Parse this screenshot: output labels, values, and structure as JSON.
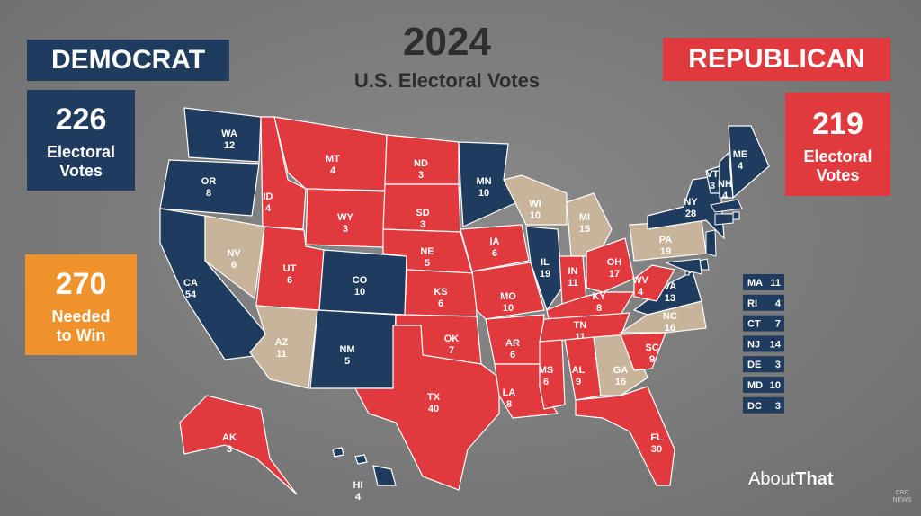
{
  "header": {
    "title": "2024",
    "subtitle": "U.S. Electoral Votes"
  },
  "democrat": {
    "label": "DEMOCRAT",
    "votes": 226,
    "caption": "Electoral Votes",
    "color": "#1f3c5f"
  },
  "republican": {
    "label": "REPUBLICAN",
    "votes": 219,
    "caption": "Electoral Votes",
    "color": "#e0393e"
  },
  "threshold": {
    "votes": 270,
    "caption": "Needed to Win",
    "color": "#f0922b"
  },
  "states": [
    {
      "abbr": "WA",
      "votes": 12,
      "color": "#1f3c5f"
    },
    {
      "abbr": "OR",
      "votes": 8,
      "color": "#1f3c5f"
    },
    {
      "abbr": "CA",
      "votes": 54,
      "color": "#1f3c5f"
    },
    {
      "abbr": "NV",
      "votes": 6,
      "color": "#c8b49b"
    },
    {
      "abbr": "ID",
      "votes": 4,
      "color": "#e0393e"
    },
    {
      "abbr": "MT",
      "votes": 4,
      "color": "#e0393e"
    },
    {
      "abbr": "WY",
      "votes": 3,
      "color": "#e0393e"
    },
    {
      "abbr": "UT",
      "votes": 6,
      "color": "#e0393e"
    },
    {
      "abbr": "AZ",
      "votes": 11,
      "color": "#c8b49b"
    },
    {
      "abbr": "CO",
      "votes": 10,
      "color": "#1f3c5f"
    },
    {
      "abbr": "NM",
      "votes": 5,
      "color": "#1f3c5f"
    },
    {
      "abbr": "ND",
      "votes": 3,
      "color": "#e0393e"
    },
    {
      "abbr": "SD",
      "votes": 3,
      "color": "#e0393e"
    },
    {
      "abbr": "NE",
      "votes": 5,
      "color": "#e0393e"
    },
    {
      "abbr": "KS",
      "votes": 6,
      "color": "#e0393e"
    },
    {
      "abbr": "OK",
      "votes": 7,
      "color": "#e0393e"
    },
    {
      "abbr": "TX",
      "votes": 40,
      "color": "#e0393e"
    },
    {
      "abbr": "MN",
      "votes": 10,
      "color": "#1f3c5f"
    },
    {
      "abbr": "IA",
      "votes": 6,
      "color": "#e0393e"
    },
    {
      "abbr": "MO",
      "votes": 10,
      "color": "#e0393e"
    },
    {
      "abbr": "AR",
      "votes": 6,
      "color": "#e0393e"
    },
    {
      "abbr": "LA",
      "votes": 8,
      "color": "#e0393e"
    },
    {
      "abbr": "WI",
      "votes": 10,
      "color": "#c8b49b"
    },
    {
      "abbr": "IL",
      "votes": 19,
      "color": "#1f3c5f"
    },
    {
      "abbr": "MI",
      "votes": 15,
      "color": "#c8b49b"
    },
    {
      "abbr": "IN",
      "votes": 11,
      "color": "#e0393e"
    },
    {
      "abbr": "OH",
      "votes": 17,
      "color": "#e0393e"
    },
    {
      "abbr": "KY",
      "votes": 8,
      "color": "#e0393e"
    },
    {
      "abbr": "TN",
      "votes": 11,
      "color": "#e0393e"
    },
    {
      "abbr": "MS",
      "votes": 6,
      "color": "#e0393e"
    },
    {
      "abbr": "AL",
      "votes": 9,
      "color": "#e0393e"
    },
    {
      "abbr": "GA",
      "votes": 16,
      "color": "#c8b49b"
    },
    {
      "abbr": "FL",
      "votes": 30,
      "color": "#e0393e"
    },
    {
      "abbr": "SC",
      "votes": 9,
      "color": "#e0393e"
    },
    {
      "abbr": "NC",
      "votes": 16,
      "color": "#c8b49b"
    },
    {
      "abbr": "VA",
      "votes": 13,
      "color": "#1f3c5f"
    },
    {
      "abbr": "WV",
      "votes": 4,
      "color": "#e0393e"
    },
    {
      "abbr": "PA",
      "votes": 19,
      "color": "#c8b49b"
    },
    {
      "abbr": "NY",
      "votes": 28,
      "color": "#1f3c5f"
    },
    {
      "abbr": "VT",
      "votes": 3,
      "color": "#1f3c5f"
    },
    {
      "abbr": "NH",
      "votes": 4,
      "color": "#1f3c5f"
    },
    {
      "abbr": "ME",
      "votes": 4,
      "color": "#1f3c5f"
    },
    {
      "abbr": "AK",
      "votes": 3,
      "color": "#e0393e"
    },
    {
      "abbr": "HI",
      "votes": 4,
      "color": "#1f3c5f"
    }
  ],
  "small_states": [
    {
      "abbr": "MA",
      "votes": 11,
      "color": "#1f3c5f"
    },
    {
      "abbr": "RI",
      "votes": 4,
      "color": "#1f3c5f"
    },
    {
      "abbr": "CT",
      "votes": 7,
      "color": "#1f3c5f"
    },
    {
      "abbr": "NJ",
      "votes": 14,
      "color": "#1f3c5f"
    },
    {
      "abbr": "DE",
      "votes": 3,
      "color": "#1f3c5f"
    },
    {
      "abbr": "MD",
      "votes": 10,
      "color": "#1f3c5f"
    },
    {
      "abbr": "DC",
      "votes": 3,
      "color": "#1f3c5f"
    }
  ],
  "footer": {
    "brand_light": "About",
    "brand_bold": "That",
    "network": "CBC NEWS"
  }
}
